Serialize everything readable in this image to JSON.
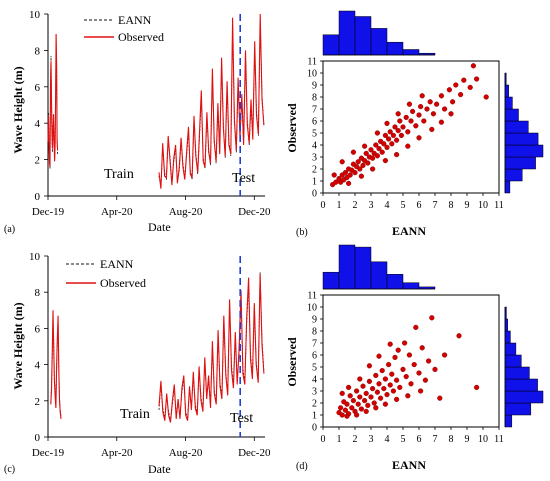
{
  "colors": {
    "observed": "#e01010",
    "eann": "#111111",
    "split_line": "#1f3fd8",
    "scatter_point": "#d40000",
    "scatter_edge": "#7a0000",
    "histogram": "#1010e8"
  },
  "chart_data": [
    {
      "id": "a",
      "type": "line",
      "panel_label": "(a)",
      "xlabel": "Date",
      "ylabel": "Wave Height (m)",
      "x_ticks": [
        "Dec-19",
        "Apr-20",
        "Aug-20",
        "Dec-20"
      ],
      "y_ticks": [
        "0",
        "2",
        "4",
        "6",
        "8",
        "10"
      ],
      "ylim": [
        0,
        10
      ],
      "x_range": [
        "2019-12-01",
        "2020-12-20"
      ],
      "grid": false,
      "legend": "top",
      "legend_entries": [
        "EANN",
        "Observed"
      ],
      "annotations": {
        "train": "Train",
        "test": "Test"
      },
      "split_date": "2020-11-06",
      "series": [
        {
          "name": "EANN",
          "style": "dashed",
          "segments": [
            {
              "start": "2019-12-01",
              "end": "2019-12-18",
              "values": [
                2.9,
                4.6,
                3.0,
                2.0,
                1.5,
                5.8,
                7.7,
                5.6,
                3.1,
                2.4,
                3.8,
                4.2,
                3.3,
                2.0,
                2.6,
                5.0,
                8.7,
                7.6,
                3.2,
                2.3
              ]
            },
            {
              "start": "2020-06-15",
              "end": "2020-12-18",
              "values": [
                1.1,
                0.5,
                2.7,
                1.3,
                0.9,
                3.1,
                2.1,
                0.7,
                1.9,
                2.6,
                0.8,
                1.4,
                3.0,
                1.8,
                1.0,
                2.2,
                3.5,
                1.4,
                0.9,
                4.1,
                2.4,
                1.2,
                3.2,
                5.4,
                2.1,
                1.5,
                4.3,
                2.6,
                1.7,
                6.7,
                3.2,
                1.8,
                4.8,
                2.5,
                7.2,
                3.9,
                2.1,
                5.9,
                3.0,
                2.2,
                9.4,
                4.4,
                2.4,
                6.1,
                3.4,
                5.2,
                3.0,
                7.6,
                4.2,
                2.8,
                4.9,
                3.3,
                8.0,
                4.7,
                3.3,
                9.6,
                5.6,
                3.8
              ]
            }
          ]
        },
        {
          "name": "Observed",
          "style": "solid",
          "segments": [
            {
              "start": "2019-12-01",
              "end": "2019-12-18",
              "values": [
                3.0,
                4.4,
                2.8,
                1.8,
                1.6,
                6.1,
                7.4,
                5.2,
                3.3,
                2.6,
                3.5,
                4.5,
                3.1,
                1.9,
                2.8,
                5.4,
                8.9,
                7.2,
                3.0,
                2.5
              ]
            },
            {
              "start": "2020-06-15",
              "end": "2020-12-18",
              "values": [
                1.3,
                0.4,
                2.9,
                1.1,
                1.0,
                3.3,
                1.9,
                0.6,
                2.1,
                2.8,
                0.7,
                1.6,
                3.2,
                1.6,
                0.9,
                2.4,
                3.8,
                1.2,
                1.0,
                4.4,
                2.2,
                1.3,
                3.5,
                5.8,
                1.9,
                1.6,
                4.6,
                2.4,
                1.8,
                7.0,
                3.0,
                1.9,
                5.1,
                2.3,
                7.6,
                3.7,
                2.2,
                6.3,
                2.8,
                2.3,
                9.8,
                4.1,
                2.5,
                6.5,
                3.2,
                5.6,
                2.8,
                8.0,
                3.9,
                2.9,
                5.3,
                3.1,
                8.5,
                4.4,
                3.4,
                10.0,
                5.3,
                3.9
              ]
            }
          ]
        }
      ]
    },
    {
      "id": "b",
      "type": "scatter",
      "panel_label": "(b)",
      "xlabel": "EANN",
      "ylabel": "Observed",
      "ticks": [
        "0",
        "1",
        "2",
        "3",
        "4",
        "5",
        "6",
        "7",
        "8",
        "9",
        "10",
        "11"
      ],
      "xlim": [
        0,
        11
      ],
      "ylim": [
        0,
        11
      ],
      "grid": false,
      "points": [
        [
          0.6,
          0.7
        ],
        [
          0.8,
          0.9
        ],
        [
          1.0,
          1.2
        ],
        [
          1.1,
          0.9
        ],
        [
          1.2,
          1.5
        ],
        [
          1.3,
          1.1
        ],
        [
          1.4,
          1.7
        ],
        [
          1.5,
          1.3
        ],
        [
          1.6,
          2.0
        ],
        [
          1.7,
          1.5
        ],
        [
          1.8,
          1.9
        ],
        [
          1.9,
          2.4
        ],
        [
          2.0,
          1.7
        ],
        [
          2.1,
          2.2
        ],
        [
          2.2,
          2.6
        ],
        [
          2.3,
          2.0
        ],
        [
          2.4,
          2.9
        ],
        [
          2.5,
          2.3
        ],
        [
          2.6,
          2.7
        ],
        [
          2.7,
          3.3
        ],
        [
          2.8,
          2.5
        ],
        [
          2.9,
          3.0
        ],
        [
          3.0,
          3.6
        ],
        [
          3.1,
          2.9
        ],
        [
          3.2,
          3.3
        ],
        [
          3.3,
          4.0
        ],
        [
          3.4,
          3.1
        ],
        [
          3.5,
          3.7
        ],
        [
          3.6,
          4.3
        ],
        [
          3.7,
          3.4
        ],
        [
          3.8,
          4.1
        ],
        [
          3.9,
          4.8
        ],
        [
          4.0,
          3.8
        ],
        [
          4.1,
          4.5
        ],
        [
          4.2,
          5.1
        ],
        [
          4.3,
          4.1
        ],
        [
          4.4,
          4.8
        ],
        [
          4.5,
          5.5
        ],
        [
          4.6,
          4.4
        ],
        [
          4.7,
          5.2
        ],
        [
          4.8,
          6.0
        ],
        [
          4.9,
          4.8
        ],
        [
          5.0,
          5.5
        ],
        [
          5.2,
          6.3
        ],
        [
          5.3,
          5.1
        ],
        [
          5.5,
          6.0
        ],
        [
          5.6,
          6.8
        ],
        [
          5.8,
          5.6
        ],
        [
          6.0,
          6.5
        ],
        [
          6.1,
          7.2
        ],
        [
          6.3,
          6.0
        ],
        [
          6.5,
          7.0
        ],
        [
          6.7,
          7.6
        ],
        [
          6.9,
          6.6
        ],
        [
          7.1,
          7.4
        ],
        [
          7.4,
          8.1
        ],
        [
          7.6,
          7.0
        ],
        [
          7.9,
          8.6
        ],
        [
          8.1,
          7.6
        ],
        [
          8.3,
          9.0
        ],
        [
          8.6,
          8.2
        ],
        [
          8.8,
          9.4
        ],
        [
          9.2,
          8.8
        ],
        [
          9.6,
          9.5
        ],
        [
          10.2,
          8.0
        ],
        [
          9.4,
          10.6
        ],
        [
          0.7,
          1.5
        ],
        [
          1.2,
          2.6
        ],
        [
          1.9,
          3.4
        ],
        [
          2.6,
          3.9
        ],
        [
          3.4,
          5.0
        ],
        [
          4.0,
          5.8
        ],
        [
          4.7,
          6.6
        ],
        [
          5.4,
          7.4
        ],
        [
          6.2,
          8.1
        ],
        [
          1.6,
          0.8
        ],
        [
          2.4,
          1.4
        ],
        [
          3.1,
          2.0
        ],
        [
          3.9,
          2.7
        ],
        [
          4.6,
          3.2
        ],
        [
          5.3,
          3.9
        ],
        [
          6.0,
          4.6
        ],
        [
          6.8,
          5.3
        ],
        [
          7.4,
          5.9
        ],
        [
          8.0,
          6.6
        ]
      ],
      "x_histogram": {
        "bins": 7,
        "values": [
          2.2,
          4.8,
          4.2,
          2.9,
          1.4,
          0.6,
          0.2
        ]
      },
      "y_histogram": {
        "bins": 10,
        "values": [
          0.4,
          1.4,
          2.5,
          3.1,
          2.7,
          1.9,
          1.1,
          0.6,
          0.3,
          0.1
        ]
      }
    },
    {
      "id": "c",
      "type": "line",
      "panel_label": "(c)",
      "xlabel": "Date",
      "ylabel": "Wave Height (m)",
      "x_ticks": [
        "Dec-19",
        "Apr-20",
        "Aug-20",
        "Dec-20"
      ],
      "y_ticks": [
        "0",
        "2",
        "4",
        "6",
        "8",
        "10"
      ],
      "ylim": [
        0,
        10
      ],
      "x_range": [
        "2019-12-01",
        "2020-12-20"
      ],
      "grid": false,
      "legend": "top",
      "legend_entries": [
        "EANN",
        "Observed"
      ],
      "annotations": {
        "train": "Train",
        "test": "Test"
      },
      "split_date": "2020-11-06",
      "series": [
        {
          "name": "EANN",
          "style": "dashed",
          "segments": [
            {
              "start": "2019-12-06",
              "end": "2019-12-24",
              "values": [
                2.0,
                2.8,
                4.5,
                6.6,
                5.3,
                3.3,
                2.4,
                1.8,
                3.6,
                5.1,
                6.4,
                4.0,
                2.2,
                1.5,
                1.2
              ]
            },
            {
              "start": "2020-06-15",
              "end": "2020-12-18",
              "values": [
                1.5,
                2.9,
                1.6,
                1.0,
                2.2,
                1.4,
                0.9,
                1.8,
                2.7,
                1.2,
                1.9,
                1.1,
                2.5,
                3.2,
                1.4,
                1.0,
                2.6,
                1.7,
                3.3,
                1.8,
                1.3,
                3.6,
                2.2,
                1.5,
                4.1,
                2.3,
                3.1,
                1.8,
                5.0,
                2.6,
                1.9,
                5.6,
                3.0,
                2.2,
                6.3,
                3.6,
                2.4,
                7.2,
                4.0,
                2.8,
                5.4,
                3.1,
                4.6,
                7.8,
                3.8,
                3.0,
                6.3,
                8.4,
                4.6,
                3.3,
                7.0,
                4.2,
                3.1,
                9.1,
                5.4,
                3.6
              ]
            }
          ]
        },
        {
          "name": "Observed",
          "style": "solid",
          "segments": [
            {
              "start": "2019-12-06",
              "end": "2019-12-24",
              "values": [
                1.8,
                2.6,
                4.8,
                7.0,
                5.0,
                3.1,
                2.2,
                1.6,
                3.9,
                5.4,
                6.7,
                3.7,
                2.0,
                1.4,
                1.0
              ]
            },
            {
              "start": "2020-06-15",
              "end": "2020-12-18",
              "values": [
                1.7,
                3.1,
                1.4,
                0.9,
                2.4,
                1.2,
                0.8,
                2.0,
                2.9,
                1.0,
                2.1,
                1.0,
                2.7,
                3.4,
                1.2,
                0.9,
                2.8,
                1.5,
                3.6,
                1.6,
                1.2,
                3.9,
                2.0,
                1.4,
                4.4,
                2.1,
                3.4,
                1.6,
                5.3,
                2.4,
                1.8,
                5.9,
                2.8,
                2.1,
                6.7,
                3.4,
                2.3,
                7.6,
                3.7,
                2.7,
                5.8,
                2.9,
                4.9,
                8.1,
                3.5,
                2.9,
                6.6,
                8.8,
                4.3,
                3.2,
                7.4,
                4.0,
                3.0,
                9.0,
                5.1,
                3.5
              ]
            }
          ]
        }
      ]
    },
    {
      "id": "d",
      "type": "scatter",
      "panel_label": "(d)",
      "xlabel": "EANN",
      "ylabel": "Observed",
      "ticks": [
        "0",
        "1",
        "2",
        "3",
        "4",
        "5",
        "6",
        "7",
        "8",
        "9",
        "10",
        "11"
      ],
      "xlim": [
        0,
        11
      ],
      "ylim": [
        0,
        11
      ],
      "grid": false,
      "points": [
        [
          1.0,
          1.2
        ],
        [
          1.1,
          1.6
        ],
        [
          1.2,
          1.0
        ],
        [
          1.3,
          2.1
        ],
        [
          1.4,
          1.4
        ],
        [
          1.5,
          1.9
        ],
        [
          1.6,
          1.1
        ],
        [
          1.7,
          2.6
        ],
        [
          1.8,
          1.6
        ],
        [
          1.9,
          2.2
        ],
        [
          2.0,
          1.3
        ],
        [
          2.1,
          3.0
        ],
        [
          2.2,
          1.9
        ],
        [
          2.3,
          2.5
        ],
        [
          2.4,
          1.5
        ],
        [
          2.5,
          3.4
        ],
        [
          2.6,
          2.2
        ],
        [
          2.7,
          2.8
        ],
        [
          2.8,
          1.8
        ],
        [
          2.9,
          3.8
        ],
        [
          3.0,
          2.5
        ],
        [
          3.1,
          3.2
        ],
        [
          3.2,
          2.0
        ],
        [
          3.3,
          4.3
        ],
        [
          3.4,
          2.9
        ],
        [
          3.5,
          3.6
        ],
        [
          3.6,
          2.4
        ],
        [
          3.7,
          4.7
        ],
        [
          3.8,
          3.2
        ],
        [
          3.9,
          4.0
        ],
        [
          4.0,
          2.7
        ],
        [
          4.1,
          5.2
        ],
        [
          4.2,
          3.5
        ],
        [
          4.3,
          4.4
        ],
        [
          4.4,
          3.0
        ],
        [
          4.5,
          5.8
        ],
        [
          4.6,
          3.9
        ],
        [
          4.7,
          6.4
        ],
        [
          4.8,
          3.3
        ],
        [
          5.0,
          4.8
        ],
        [
          5.1,
          7.0
        ],
        [
          5.2,
          4.2
        ],
        [
          5.4,
          6.0
        ],
        [
          5.5,
          3.6
        ],
        [
          5.7,
          5.2
        ],
        [
          5.8,
          8.3
        ],
        [
          6.0,
          4.5
        ],
        [
          6.2,
          6.6
        ],
        [
          6.4,
          3.9
        ],
        [
          6.6,
          5.5
        ],
        [
          6.8,
          9.1
        ],
        [
          7.0,
          4.8
        ],
        [
          7.3,
          2.4
        ],
        [
          7.6,
          6.0
        ],
        [
          8.5,
          7.6
        ],
        [
          9.6,
          3.3
        ],
        [
          1.2,
          2.8
        ],
        [
          1.6,
          3.3
        ],
        [
          2.3,
          4.0
        ],
        [
          2.9,
          5.1
        ],
        [
          3.5,
          5.9
        ],
        [
          4.2,
          6.9
        ],
        [
          1.5,
          0.9
        ],
        [
          2.1,
          1.0
        ],
        [
          2.7,
          1.3
        ],
        [
          3.3,
          1.6
        ],
        [
          3.9,
          1.9
        ],
        [
          4.6,
          2.3
        ],
        [
          5.3,
          2.6
        ],
        [
          6.1,
          3.0
        ]
      ],
      "x_histogram": {
        "bins": 7,
        "values": [
          1.6,
          4.2,
          4.0,
          2.6,
          1.4,
          0.6,
          0.2
        ]
      },
      "y_histogram": {
        "bins": 10,
        "values": [
          0.5,
          1.9,
          2.8,
          2.4,
          1.8,
          1.2,
          0.8,
          0.4,
          0.2,
          0.1
        ]
      }
    }
  ]
}
